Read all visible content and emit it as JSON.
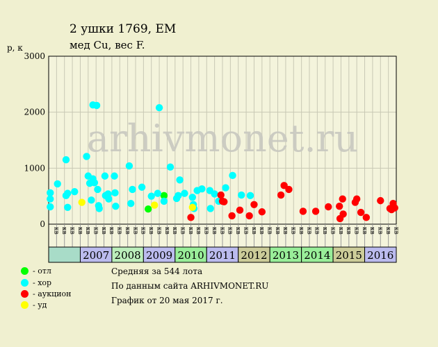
{
  "header": {
    "title": "2 ушки 1769, ЕМ",
    "subtitle": "мед Cu, вес F."
  },
  "watermark": "arhivmonet.ru",
  "chart_data": {
    "type": "scatter",
    "ylabel": "р, к",
    "ylim": [
      0,
      3000
    ],
    "yticks": [
      0,
      1000,
      2000,
      3000
    ],
    "xlim": [
      2006.0,
      2017.0
    ],
    "years": [
      "2007",
      "2008",
      "2009",
      "2010",
      "2011",
      "2012",
      "2013",
      "2014",
      "2015",
      "2016"
    ],
    "year_colors": [
      "#bbbbee",
      "#bbeebb",
      "#bbbbee",
      "#99ee99",
      "#bbbbee",
      "#cccc99",
      "#99ee99",
      "#99ee99",
      "#cccc99",
      "#bbbbee"
    ],
    "quarter_labels": [
      "кв",
      "кв",
      "кв",
      "кв"
    ],
    "series": [
      {
        "color": "#00ff00",
        "points": [
          [
            2009.15,
            270
          ],
          [
            2009.65,
            510
          ]
        ]
      },
      {
        "color": "#00ffff",
        "points": [
          [
            2006.05,
            560
          ],
          [
            2006.05,
            450
          ],
          [
            2006.05,
            310
          ],
          [
            2006.28,
            720
          ],
          [
            2006.55,
            1150
          ],
          [
            2006.55,
            510
          ],
          [
            2006.6,
            550
          ],
          [
            2006.6,
            300
          ],
          [
            2006.82,
            580
          ],
          [
            2007.2,
            1210
          ],
          [
            2007.25,
            860
          ],
          [
            2007.3,
            730
          ],
          [
            2007.35,
            430
          ],
          [
            2007.4,
            810
          ],
          [
            2007.4,
            2130
          ],
          [
            2007.45,
            740
          ],
          [
            2007.52,
            2120
          ],
          [
            2007.55,
            620
          ],
          [
            2007.58,
            330
          ],
          [
            2007.6,
            280
          ],
          [
            2007.78,
            860
          ],
          [
            2007.8,
            510
          ],
          [
            2007.88,
            540
          ],
          [
            2007.9,
            450
          ],
          [
            2008.08,
            860
          ],
          [
            2008.1,
            560
          ],
          [
            2008.12,
            320
          ],
          [
            2008.55,
            1040
          ],
          [
            2008.6,
            370
          ],
          [
            2008.65,
            620
          ],
          [
            2008.95,
            660
          ],
          [
            2009.25,
            500
          ],
          [
            2009.45,
            550
          ],
          [
            2009.5,
            2080
          ],
          [
            2009.65,
            410
          ],
          [
            2009.85,
            1020
          ],
          [
            2010.05,
            460
          ],
          [
            2010.1,
            510
          ],
          [
            2010.15,
            790
          ],
          [
            2010.3,
            550
          ],
          [
            2010.55,
            480
          ],
          [
            2010.58,
            350
          ],
          [
            2010.6,
            280
          ],
          [
            2010.7,
            600
          ],
          [
            2010.85,
            630
          ],
          [
            2011.1,
            600
          ],
          [
            2011.12,
            280
          ],
          [
            2011.25,
            540
          ],
          [
            2011.38,
            410
          ],
          [
            2011.6,
            650
          ],
          [
            2011.82,
            870
          ],
          [
            2012.1,
            520
          ],
          [
            2012.38,
            510
          ]
        ]
      },
      {
        "color": "#ff0000",
        "points": [
          [
            2010.5,
            120
          ],
          [
            2011.45,
            520
          ],
          [
            2011.5,
            410
          ],
          [
            2011.55,
            400
          ],
          [
            2011.8,
            150
          ],
          [
            2012.05,
            250
          ],
          [
            2012.35,
            150
          ],
          [
            2012.5,
            350
          ],
          [
            2012.75,
            220
          ],
          [
            2013.35,
            520
          ],
          [
            2013.45,
            690
          ],
          [
            2013.6,
            620
          ],
          [
            2014.05,
            230
          ],
          [
            2014.45,
            230
          ],
          [
            2014.85,
            310
          ],
          [
            2015.2,
            320
          ],
          [
            2015.22,
            100
          ],
          [
            2015.3,
            450
          ],
          [
            2015.32,
            180
          ],
          [
            2015.7,
            390
          ],
          [
            2015.75,
            450
          ],
          [
            2015.88,
            210
          ],
          [
            2016.05,
            120
          ],
          [
            2016.5,
            420
          ],
          [
            2016.8,
            280
          ],
          [
            2016.85,
            260
          ],
          [
            2016.9,
            370
          ],
          [
            2016.95,
            290
          ]
        ]
      },
      {
        "color": "#ffff00",
        "points": [
          [
            2007.05,
            390
          ],
          [
            2009.35,
            340
          ],
          [
            2010.55,
            300
          ]
        ]
      }
    ]
  },
  "legend": [
    {
      "color": "#00ff00",
      "label": "- отл"
    },
    {
      "color": "#00ffff",
      "label": "- хор"
    },
    {
      "color": "#ff0000",
      "label": "- аукцион"
    },
    {
      "color": "#ffff00",
      "label": "- уд"
    }
  ],
  "info": {
    "line1": "Средняя за 544 лота",
    "line2": "По данным сайта ARHIVMONET.RU",
    "line3": "График от 20 мая 2017 г."
  }
}
